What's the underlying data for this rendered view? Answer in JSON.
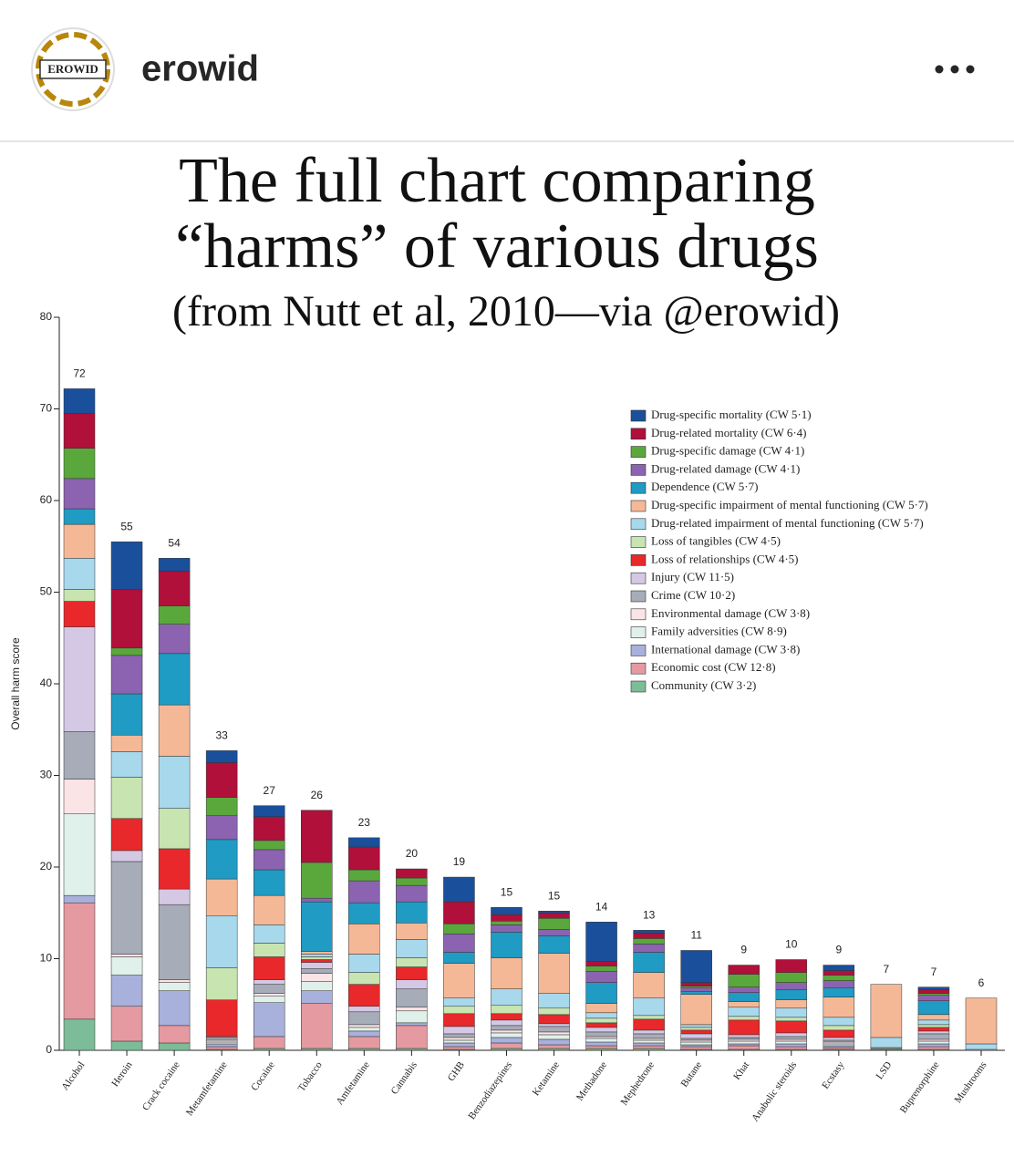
{
  "header": {
    "logo_text": "EROWID",
    "username": "erowid"
  },
  "chart_data": {
    "type": "stacked_bar",
    "title_lines": [
      "The full chart comparing",
      "“harms” of various drugs"
    ],
    "subtitle": "(from Nutt et al, 2010—via @erowid)",
    "ylabel": "Overall harm score",
    "ylim": [
      0,
      80
    ],
    "yticks": [
      0,
      10,
      20,
      30,
      40,
      50,
      60,
      70,
      80
    ],
    "categories": [
      "Alcohol",
      "Heroin",
      "Crack cocaine",
      "Metamfetamine",
      "Cocaine",
      "Tobacco",
      "Amfetamine",
      "Cannabis",
      "GHB",
      "Benzodiazepines",
      "Ketamine",
      "Methadone",
      "Mephedrone",
      "Butane",
      "Khat",
      "Anabolic steroids",
      "Ecstasy",
      "LSD",
      "Buprenorphine",
      "Mushrooms"
    ],
    "totals": [
      72,
      55,
      54,
      33,
      27,
      26,
      23,
      20,
      19,
      15,
      15,
      14,
      13,
      11,
      9,
      10,
      9,
      7,
      7,
      6
    ],
    "series": [
      {
        "name": "Drug-specific mortality (CW 5·1)",
        "color": "#1a4f9c",
        "values": [
          2.7,
          5.2,
          1.4,
          1.3,
          1.2,
          0,
          1.0,
          0,
          2.7,
          0.8,
          0.2,
          4.3,
          0.3,
          3.5,
          0,
          0,
          0.6,
          0,
          0.3,
          0
        ]
      },
      {
        "name": "Drug-related mortality (CW 6·4)",
        "color": "#b0103a",
        "values": [
          3.8,
          6.4,
          3.8,
          3.8,
          2.6,
          5.7,
          2.5,
          1.0,
          2.4,
          0.7,
          0.6,
          0.5,
          0.6,
          0.4,
          1.0,
          1.4,
          0.5,
          0,
          0.4,
          0
        ]
      },
      {
        "name": "Drug-specific damage (CW 4·1)",
        "color": "#5aa83c",
        "values": [
          3.3,
          0.8,
          2.0,
          2.0,
          1.0,
          3.9,
          1.2,
          0.8,
          1.1,
          0.4,
          1.2,
          0.6,
          0.6,
          0.2,
          1.4,
          1.1,
          0.6,
          0,
          0.2,
          0
        ]
      },
      {
        "name": "Drug-related damage (CW 4·1)",
        "color": "#8b63b0",
        "values": [
          3.3,
          4.2,
          3.2,
          2.6,
          2.2,
          0.4,
          2.4,
          1.8,
          2.0,
          0.8,
          0.7,
          1.2,
          0.9,
          0.4,
          0.6,
          0.8,
          0.8,
          0,
          0.6,
          0
        ]
      },
      {
        "name": "Dependence (CW 5·7)",
        "color": "#1f9bc4",
        "values": [
          1.7,
          4.5,
          5.6,
          4.3,
          2.8,
          5.4,
          2.3,
          2.3,
          1.2,
          2.8,
          1.9,
          2.3,
          2.2,
          0.3,
          1.0,
          1.1,
          1.0,
          0,
          1.5,
          0
        ]
      },
      {
        "name": "Drug-specific impairment of mental functioning (CW 5·7)",
        "color": "#f5b896",
        "values": [
          3.7,
          1.8,
          5.6,
          4.0,
          3.2,
          0.3,
          3.3,
          1.8,
          3.8,
          3.4,
          4.4,
          1.0,
          2.8,
          3.3,
          0.6,
          0.9,
          2.2,
          5.8,
          0.6,
          5.0
        ]
      },
      {
        "name": "Drug-related impairment of mental functioning (CW 5·7)",
        "color": "#a8d8ec",
        "values": [
          3.4,
          2.8,
          5.7,
          5.7,
          2.0,
          0.3,
          2.0,
          2.0,
          0.9,
          1.8,
          1.6,
          0.6,
          1.9,
          0.3,
          1.0,
          1.0,
          0.9,
          1.1,
          0.5,
          0.6
        ]
      },
      {
        "name": "Loss of tangibles (CW 4·5)",
        "color": "#c8e4b0",
        "values": [
          1.3,
          4.5,
          4.4,
          3.5,
          1.5,
          0.3,
          1.3,
          1.0,
          0.8,
          0.9,
          0.7,
          0.5,
          0.4,
          0.3,
          0.4,
          0.4,
          0.5,
          0.1,
          0.3,
          0
        ]
      },
      {
        "name": "Loss of relationships (CW 4·5)",
        "color": "#e8282a",
        "values": [
          2.8,
          3.5,
          4.4,
          4.0,
          2.5,
          0.3,
          2.4,
          1.4,
          1.4,
          0.7,
          1.0,
          0.5,
          1.2,
          0.4,
          1.6,
          1.3,
          0.8,
          0,
          0.4,
          0
        ]
      },
      {
        "name": "Injury (CW 11·5)",
        "color": "#d4c8e4",
        "values": [
          11.4,
          1.2,
          1.7,
          0.1,
          0.5,
          0.7,
          0.6,
          1.0,
          0.8,
          0.6,
          0.3,
          0.5,
          0.4,
          0.5,
          0.3,
          0.4,
          0.3,
          0,
          0.3,
          0.1
        ]
      },
      {
        "name": "Crime (CW 10·2)",
        "color": "#a6acb8",
        "values": [
          5.2,
          10.1,
          8.2,
          0.3,
          1.0,
          0.5,
          1.4,
          2.0,
          0.4,
          0.5,
          0.6,
          0.5,
          0.5,
          0.2,
          0.2,
          0.3,
          0.2,
          0,
          0.6,
          0
        ]
      },
      {
        "name": "Environmental damage (CW 3·8)",
        "color": "#fbe4e6",
        "values": [
          3.8,
          0.3,
          0.3,
          0.2,
          0.3,
          0.9,
          0.3,
          0.4,
          0.3,
          0.3,
          0.3,
          0.2,
          0.2,
          0.2,
          0.2,
          0.2,
          0.2,
          0,
          0.2,
          0
        ]
      },
      {
        "name": "Family adversities (CW 8·9)",
        "color": "#e0f0ea",
        "values": [
          8.9,
          2.0,
          0.9,
          0.2,
          0.7,
          1.0,
          0.4,
          1.3,
          0.3,
          0.5,
          0.5,
          0.4,
          0.3,
          0.3,
          0.3,
          0.3,
          0.2,
          0.1,
          0.3,
          0
        ]
      },
      {
        "name": "International damage (CW 3·8)",
        "color": "#a8b0dc",
        "values": [
          0.8,
          3.4,
          3.8,
          0.3,
          3.7,
          1.4,
          0.6,
          0.3,
          0.4,
          0.6,
          0.6,
          0.4,
          0.3,
          0.2,
          0.2,
          0.3,
          0.2,
          0,
          0.3,
          0
        ]
      },
      {
        "name": "Economic cost (CW 12·8)",
        "color": "#e49aa0",
        "values": [
          12.7,
          3.8,
          1.9,
          0.3,
          1.3,
          4.9,
          1.3,
          2.5,
          0.3,
          0.6,
          0.4,
          0.3,
          0.3,
          0.3,
          0.4,
          0.3,
          0.2,
          0,
          0.3,
          0
        ]
      },
      {
        "name": "Community (CW 3·2)",
        "color": "#7cbc98",
        "values": [
          3.4,
          1.0,
          0.8,
          0.1,
          0.2,
          0.2,
          0.2,
          0.2,
          0.1,
          0.2,
          0.2,
          0.2,
          0.2,
          0.1,
          0.1,
          0.1,
          0.1,
          0.1,
          0.1,
          0
        ]
      }
    ],
    "legend": "upper right"
  }
}
